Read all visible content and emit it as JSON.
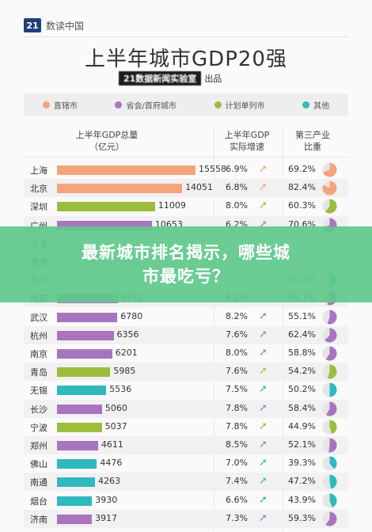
{
  "brand": {
    "logo": "21",
    "name": "数读中国"
  },
  "title": "上半年城市GDP20强",
  "subtitle": {
    "badge": "21数据新闻实验室",
    "suffix": "出品"
  },
  "legend": [
    {
      "label": "直辖市",
      "color": "#f4a57c"
    },
    {
      "label": "省会/首府城市",
      "color": "#a874c0"
    },
    {
      "label": "计划单列市",
      "color": "#9cbd3e"
    },
    {
      "label": "其他",
      "color": "#2fb9bf"
    }
  ],
  "columns": {
    "gdp": "上半年GDP总量\n（亿元）",
    "growth": "上半年GDP\n实际增速",
    "share": "第三产业\n比重"
  },
  "banner": {
    "line1": "最新城市排名揭示，哪些城",
    "line2": "市最吃亏？"
  },
  "arrow_colors": {
    "up": "#9cbd3e",
    "flat": "#a874c0",
    "upmid": "#2fb9bf",
    "orange": "#f4a57c"
  },
  "chart_data": {
    "type": "bar",
    "xlim": [
      0,
      16000
    ],
    "categories": [
      "上海",
      "北京",
      "深圳",
      "广州",
      "天津",
      "重庆",
      "苏州",
      "成都",
      "武汉",
      "杭州",
      "南京",
      "青岛",
      "无锡",
      "长沙",
      "宁波",
      "郑州",
      "佛山",
      "南通",
      "烟台",
      "济南"
    ],
    "series": [
      {
        "values": [
          15558,
          14051,
          11009,
          10653,
          null,
          null,
          null,
          6871,
          6780,
          6356,
          6201,
          5985,
          5536,
          5060,
          5037,
          4611,
          4476,
          4263,
          3930,
          3917
        ]
      }
    ],
    "types": [
      "直辖市",
      "直辖市",
      "计划单列市",
      "省会/首府城市",
      "直辖市",
      "直辖市",
      "其他",
      "省会/首府城市",
      "省会/首府城市",
      "省会/首府城市",
      "省会/首府城市",
      "计划单列市",
      "其他",
      "省会/首府城市",
      "计划单列市",
      "省会/首府城市",
      "其他",
      "其他",
      "其他",
      "省会/首府城市"
    ],
    "growth": [
      "6.9%",
      "6.8%",
      "8.0%",
      "6.2%",
      "",
      "",
      "",
      "8.2%",
      "8.2%",
      "7.6%",
      "8.0%",
      "7.6%",
      "7.5%",
      "7.8%",
      "7.8%",
      "8.5%",
      "7.0%",
      "7.4%",
      "6.6%",
      "7.3%"
    ],
    "share": [
      "69.2%",
      "82.4%",
      "60.3%",
      "70.6%",
      "",
      "",
      "50.3%",
      "55.7%",
      "55.1%",
      "62.4%",
      "58.8%",
      "54.2%",
      "50.2%",
      "58.4%",
      "44.9%",
      "52.1%",
      "39.3%",
      "47.2%",
      "43.9%",
      "59.3%"
    ],
    "share_values": [
      69.2,
      82.4,
      60.3,
      70.6,
      null,
      null,
      50.3,
      55.7,
      55.1,
      62.4,
      58.8,
      54.2,
      50.2,
      58.4,
      44.9,
      52.1,
      39.3,
      47.2,
      43.9,
      59.3
    ]
  }
}
